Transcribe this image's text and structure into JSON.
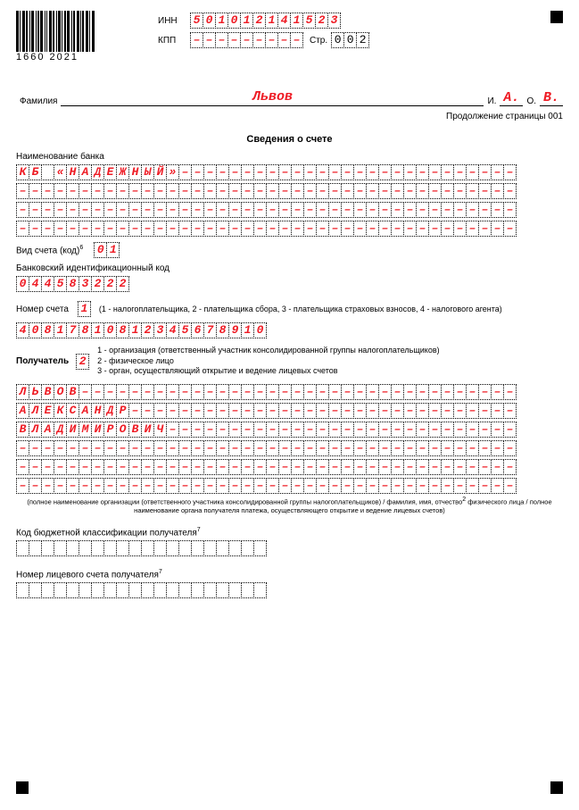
{
  "accent_color": "#ee1c25",
  "barcode_label": "1660  2021",
  "header": {
    "inn_label": "ИНН",
    "inn": [
      "5",
      "0",
      "1",
      "0",
      "1",
      "2",
      "1",
      "4",
      "1",
      "5",
      "2",
      "3"
    ],
    "kpp_label": "КПП",
    "kpp": [
      "",
      "",
      "",
      "",
      "",
      "",
      "",
      "",
      ""
    ],
    "page_label": "Стр.",
    "page": [
      "0",
      "0",
      "2"
    ]
  },
  "name": {
    "surname_label": "Фамилия",
    "surname": "Львов",
    "i_label": "И.",
    "i": "А.",
    "o_label": "О.",
    "o": "В."
  },
  "continuation": "Продолжение страницы 001",
  "section_title": "Сведения о счете",
  "bank": {
    "label": "Наименование банка",
    "rows_len": 40,
    "row1": [
      "К",
      "Б",
      " ",
      "«",
      "Н",
      "А",
      "Д",
      "Е",
      "Ж",
      "Н",
      "Ы",
      "Й",
      "»"
    ]
  },
  "account_type": {
    "label": "Вид счета (код)",
    "footnote_mark": "6",
    "value": [
      "0",
      "1"
    ]
  },
  "bik": {
    "label": "Банковский идентификационный код",
    "value": [
      "0",
      "4",
      "4",
      "5",
      "8",
      "3",
      "2",
      "2",
      "2"
    ]
  },
  "account_number": {
    "label": "Номер счета",
    "code": [
      "1"
    ],
    "note": "(1 - налогоплательщика, 2 - плательщика сбора, 3 - плательщика страховых взносов, 4 - налогового агента)",
    "value": [
      "4",
      "0",
      "8",
      "1",
      "7",
      "8",
      "1",
      "0",
      "8",
      "1",
      "2",
      "3",
      "4",
      "5",
      "6",
      "7",
      "8",
      "9",
      "1",
      "0"
    ]
  },
  "recipient": {
    "label": "Получатель",
    "code": [
      "2"
    ],
    "hints": [
      "1 - организация (ответственный участник консолидированной группы налогоплательщиков)",
      "2 - физическое лицо",
      "3 - орган, осуществляющий открытие и ведение лицевых счетов"
    ],
    "rows_len": 40,
    "row1": [
      "Л",
      "Ь",
      "В",
      "О",
      "В"
    ],
    "row2": [
      "А",
      "Л",
      "Е",
      "К",
      "С",
      "А",
      "Н",
      "Д",
      "Р"
    ],
    "row3": [
      "В",
      "Л",
      "А",
      "Д",
      "И",
      "М",
      "И",
      "Р",
      "О",
      "В",
      "И",
      "Ч"
    ],
    "footnote": "(полное наименование организации (ответственного участника консолидированной группы налогоплательщиков) / фамилия, имя, отчество",
    "footnote_mark": "2",
    "footnote2": "физического лица / полное наименование органа получателя платежа, осуществляющего открытие и ведение лицевых счетов)"
  },
  "kbk": {
    "label": "Код бюджетной классификации получателя",
    "footnote_mark": "7",
    "len": 20
  },
  "personal_account": {
    "label": "Номер лицевого счета получателя",
    "footnote_mark": "7",
    "len": 20
  }
}
